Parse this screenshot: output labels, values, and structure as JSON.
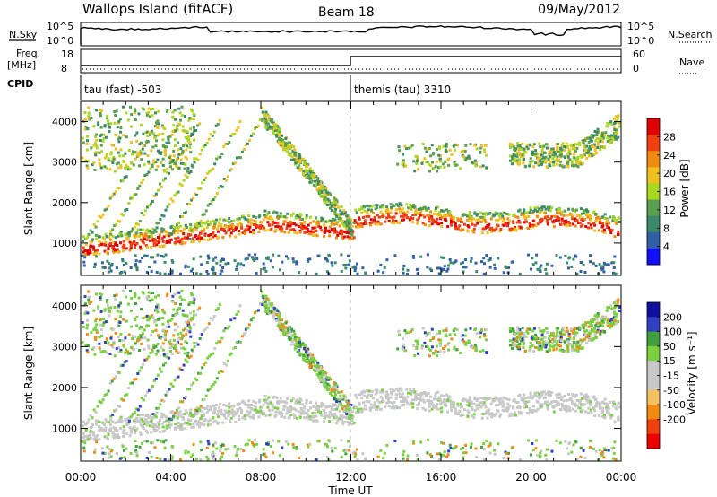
{
  "header": {
    "station": "Wallops Island (fitACF)",
    "beam": "Beam 18",
    "date": "09/May/2012"
  },
  "noise_panel": {
    "left_label": "N.Sky",
    "right_label": "N.Search",
    "left_ticks": [
      "10^5",
      "10^0"
    ],
    "right_ticks": [
      "10^5",
      "10^0"
    ]
  },
  "freq_panel": {
    "left_label_1": "Freq.",
    "left_label_2": "[MHz]",
    "right_label": "Nave",
    "left_ticks": [
      "18",
      "8"
    ],
    "right_ticks": [
      "60",
      "0"
    ]
  },
  "cpid": {
    "label": "CPID",
    "segments": [
      {
        "start_hour": 0,
        "end_hour": 12,
        "text": "tau (fast) -503"
      },
      {
        "start_hour": 12,
        "end_hour": 24,
        "text": "themis (tau) 3310"
      }
    ]
  },
  "colors": {
    "power_scale": [
      "#1010ff",
      "#3060a8",
      "#3a8a6a",
      "#5aa050",
      "#a8d820",
      "#f0c020",
      "#f08a10",
      "#f04010",
      "#e00000"
    ],
    "velocity_scale": [
      "#ee0000",
      "#f04010",
      "#f08a10",
      "#f5c060",
      "#c8c8c8",
      "#c8c8c8",
      "#7ad040",
      "#40a040",
      "#3040c0",
      "#1010a0"
    ]
  },
  "chart_data": [
    {
      "type": "heatmap",
      "name": "power",
      "xlabel": "Time UT",
      "ylabel": "Slant Range [km]",
      "xlim": [
        0,
        24
      ],
      "ylim": [
        200,
        4500
      ],
      "x_ticks": [
        {
          "v": 0,
          "label": "00:00"
        },
        {
          "v": 4,
          "label": "04:00"
        },
        {
          "v": 8,
          "label": "08:00"
        },
        {
          "v": 12,
          "label": "12:00"
        },
        {
          "v": 16,
          "label": "16:00"
        },
        {
          "v": 20,
          "label": "20:00"
        },
        {
          "v": 24,
          "label": "00:00"
        }
      ],
      "y_ticks": [
        {
          "v": 1000,
          "label": "1000"
        },
        {
          "v": 2000,
          "label": "2000"
        },
        {
          "v": 3000,
          "label": "3000"
        },
        {
          "v": 4000,
          "label": "4000"
        }
      ],
      "colorbar": {
        "label": "Power [dB]",
        "range": [
          0,
          32
        ],
        "ticks": [
          {
            "v": 4,
            "label": "4"
          },
          {
            "v": 8,
            "label": "8"
          },
          {
            "v": 12,
            "label": "12"
          },
          {
            "v": 16,
            "label": "16"
          },
          {
            "v": 20,
            "label": "20"
          },
          {
            "v": 24,
            "label": "24"
          },
          {
            "v": 28,
            "label": "28"
          }
        ]
      }
    },
    {
      "type": "heatmap",
      "name": "velocity",
      "xlabel": "Time UT",
      "ylabel": "Slant Range [km]",
      "xlim": [
        0,
        24
      ],
      "ylim": [
        200,
        4500
      ],
      "colorbar": {
        "label": "Velocity [m s⁻¹]",
        "tick_labels": [
          "200",
          "100",
          "50",
          "15",
          "-15",
          "-50",
          "-100",
          "-200"
        ]
      }
    }
  ]
}
